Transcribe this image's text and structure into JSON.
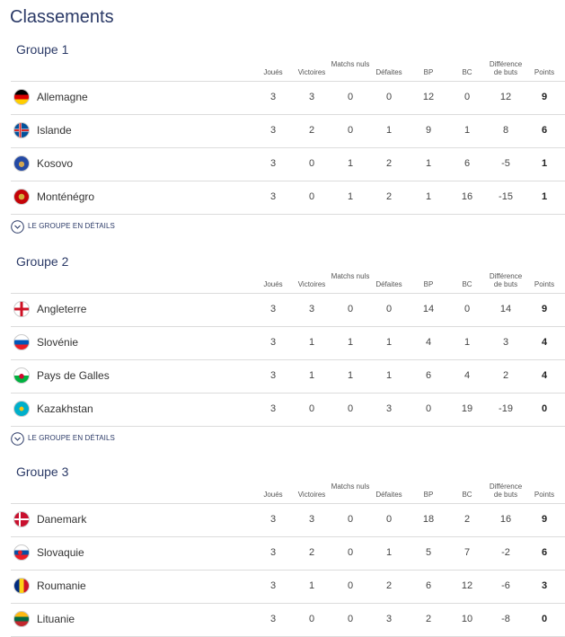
{
  "title": "Classements",
  "columns": [
    "Joués",
    "Victoires",
    "Matchs nuls",
    "Défaites",
    "BP",
    "BC",
    "Différence de buts",
    "Points"
  ],
  "groups": [
    {
      "name": "Groupe 1",
      "rows": [
        {
          "team": "Allemagne",
          "stats": [
            3,
            3,
            0,
            0,
            12,
            0,
            12,
            9
          ]
        },
        {
          "team": "Islande",
          "stats": [
            3,
            2,
            0,
            1,
            9,
            1,
            8,
            6
          ]
        },
        {
          "team": "Kosovo",
          "stats": [
            3,
            0,
            1,
            2,
            1,
            6,
            -5,
            1
          ]
        },
        {
          "team": "Monténégro",
          "stats": [
            3,
            0,
            1,
            2,
            1,
            16,
            -15,
            1
          ]
        }
      ],
      "link": "LE GROUPE EN DÉTAILS"
    },
    {
      "name": "Groupe 2",
      "rows": [
        {
          "team": "Angleterre",
          "stats": [
            3,
            3,
            0,
            0,
            14,
            0,
            14,
            9
          ]
        },
        {
          "team": "Slovénie",
          "stats": [
            3,
            1,
            1,
            1,
            4,
            1,
            3,
            4
          ]
        },
        {
          "team": "Pays de Galles",
          "stats": [
            3,
            1,
            1,
            1,
            6,
            4,
            2,
            4
          ]
        },
        {
          "team": "Kazakhstan",
          "stats": [
            3,
            0,
            0,
            3,
            0,
            19,
            -19,
            0
          ]
        }
      ],
      "link": "LE GROUPE EN DÉTAILS"
    },
    {
      "name": "Groupe 3",
      "rows": [
        {
          "team": "Danemark",
          "stats": [
            3,
            3,
            0,
            0,
            18,
            2,
            16,
            9
          ]
        },
        {
          "team": "Slovaquie",
          "stats": [
            3,
            2,
            0,
            1,
            5,
            7,
            -2,
            6
          ]
        },
        {
          "team": "Roumanie",
          "stats": [
            3,
            1,
            0,
            2,
            6,
            12,
            -6,
            3
          ]
        },
        {
          "team": "Lituanie",
          "stats": [
            3,
            0,
            0,
            3,
            2,
            10,
            -8,
            0
          ]
        }
      ]
    }
  ]
}
